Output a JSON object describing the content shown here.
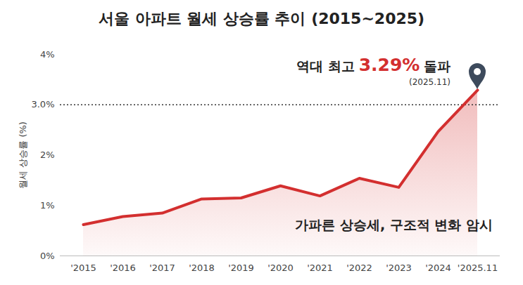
{
  "chart_data": {
    "type": "line",
    "title": "서울 아파트 월세 상승률 추이 (2015~2025)",
    "y_label": "월세 상승률 (%)",
    "categories": [
      "'2015",
      "'2016",
      "'2017",
      "'2018",
      "'2019",
      "'2020",
      "'2021",
      "'2022",
      "'2023",
      "'2024",
      "'2025.11"
    ],
    "values": [
      0.62,
      0.78,
      0.85,
      1.13,
      1.15,
      1.39,
      1.19,
      1.54,
      1.36,
      2.47,
      3.29
    ],
    "color": "#d32f2f",
    "ylim": [
      0,
      4
    ],
    "yticks": [
      {
        "value": 0,
        "label": "0%"
      },
      {
        "value": 1,
        "label": "1%"
      },
      {
        "value": 2,
        "label": "2%"
      },
      {
        "value": 3,
        "label": "3.0%"
      },
      {
        "value": 4,
        "label": "4%"
      }
    ],
    "grid": false,
    "ref_line": 3,
    "annotations": [
      {
        "parts": [
          "역대 최고",
          "3.29%",
          "돌파"
        ],
        "note": "(2025.11)"
      },
      {
        "parts": [
          "가파른 상승세, 구조적 변화 암시"
        ]
      }
    ]
  }
}
